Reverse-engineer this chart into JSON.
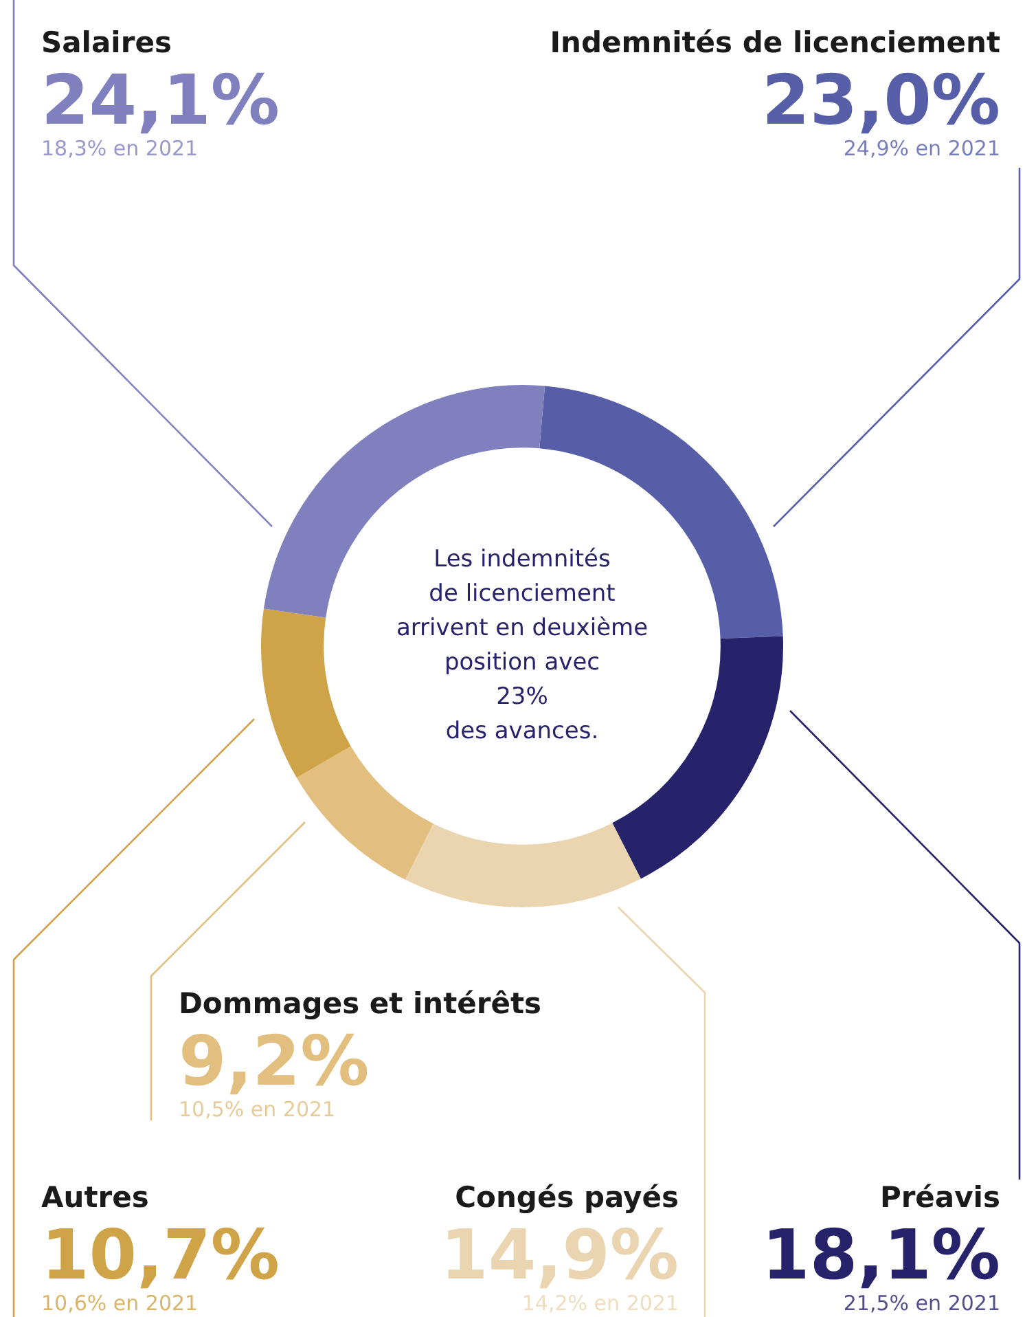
{
  "chart_data": {
    "type": "donut",
    "categories": [
      "Indemnités de licenciement",
      "Préavis",
      "Congés payés",
      "Dommages et intérêts",
      "Autres",
      "Salaires"
    ],
    "values": [
      23.0,
      18.1,
      14.9,
      9.2,
      10.7,
      24.1
    ],
    "value_labels": [
      "23,0%",
      "18,1%",
      "14,9%",
      "9,2%",
      "10,7%",
      "24,1%"
    ],
    "colors": [
      "#575ea8",
      "#27236a",
      "#ead5b0",
      "#e2bf7e",
      "#cfa347",
      "#7f80bd"
    ],
    "legend": false,
    "annotations": [
      "24,9% en 2021",
      "21,5% en 2021",
      "14,2% en 2021",
      "10,5% en 2021",
      "10,6% en 2021",
      "18,3% en 2021",
      "Les indemnités\nde licenciement\narrivent en deuxième\nposition avec\n23%\ndes avances."
    ]
  }
}
